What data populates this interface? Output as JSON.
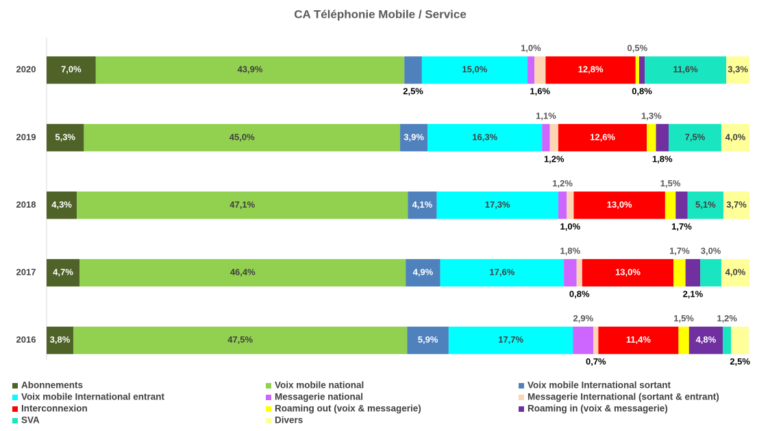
{
  "chart_data": {
    "type": "stacked_bar_horizontal",
    "title": "CA Téléphonie Mobile / Service",
    "categories": [
      "2020",
      "2019",
      "2018",
      "2017",
      "2016"
    ],
    "xlim": [
      0,
      100
    ],
    "series": [
      {
        "name": "Abonnements",
        "color": "#4f6228",
        "values": [
          7.0,
          5.3,
          4.3,
          4.7,
          3.8
        ],
        "value_labels": [
          "7,0%",
          "5,3%",
          "4,3%",
          "4,7%",
          "3,8%"
        ]
      },
      {
        "name": "Voix mobile national",
        "color": "#92d050",
        "values": [
          43.9,
          45.0,
          47.1,
          46.4,
          47.5
        ],
        "value_labels": [
          "43,9%",
          "45,0%",
          "47,1%",
          "46,4%",
          "47,5%"
        ]
      },
      {
        "name": "Voix mobile International sortant",
        "color": "#4f81bd",
        "values": [
          2.5,
          3.9,
          4.1,
          4.9,
          5.9
        ],
        "value_labels": [
          "2,5%",
          "3,9%",
          "4,1%",
          "4,9%",
          "5,9%"
        ]
      },
      {
        "name": "Voix mobile International entrant",
        "color": "#00ffff",
        "values": [
          15.0,
          16.3,
          17.3,
          17.6,
          17.7
        ],
        "value_labels": [
          "15,0%",
          "16,3%",
          "17,3%",
          "17,6%",
          "17,7%"
        ]
      },
      {
        "name": "Messagerie national",
        "color": "#cc66ff",
        "values": [
          1.0,
          1.1,
          1.2,
          1.8,
          2.9
        ],
        "value_labels": [
          "1,0%",
          "1,1%",
          "1,2%",
          "1,8%",
          "2,9%"
        ]
      },
      {
        "name": "Messagerie International (sortant & entrant)",
        "color": "#fcd5b4",
        "values": [
          1.6,
          1.2,
          1.0,
          0.8,
          0.7
        ],
        "value_labels": [
          "1,6%",
          "1,2%",
          "1,0%",
          "0,8%",
          "0,7%"
        ]
      },
      {
        "name": "Interconnexion",
        "color": "#ff0000",
        "values": [
          12.8,
          12.6,
          13.0,
          13.0,
          11.4
        ],
        "value_labels": [
          "12,8%",
          "12,6%",
          "13,0%",
          "13,0%",
          "11,4%"
        ]
      },
      {
        "name": "Roaming out (voix & messagerie)",
        "color": "#ffff00",
        "values": [
          0.5,
          1.3,
          1.5,
          1.7,
          1.5
        ],
        "value_labels": [
          "0,5%",
          "1,3%",
          "1,5%",
          "1,7%",
          "1,5%"
        ]
      },
      {
        "name": "Roaming in (voix & messagerie)",
        "color": "#7030a0",
        "values": [
          0.8,
          1.8,
          1.7,
          2.1,
          4.8
        ],
        "value_labels": [
          "0,8%",
          "1,8%",
          "1,7%",
          "2,1%",
          "4,8%"
        ]
      },
      {
        "name": "SVA",
        "color": "#19e6c0",
        "values": [
          11.6,
          7.5,
          5.1,
          3.0,
          1.2
        ],
        "value_labels": [
          "11,6%",
          "7,5%",
          "5,1%",
          "3,0%",
          "1,2%"
        ]
      },
      {
        "name": "Divers",
        "color": "#ffff99",
        "values": [
          3.3,
          4.0,
          3.7,
          4.0,
          2.5
        ],
        "value_labels": [
          "3,3%",
          "4,0%",
          "3,7%",
          "4,0%",
          "2,5%"
        ]
      }
    ]
  }
}
